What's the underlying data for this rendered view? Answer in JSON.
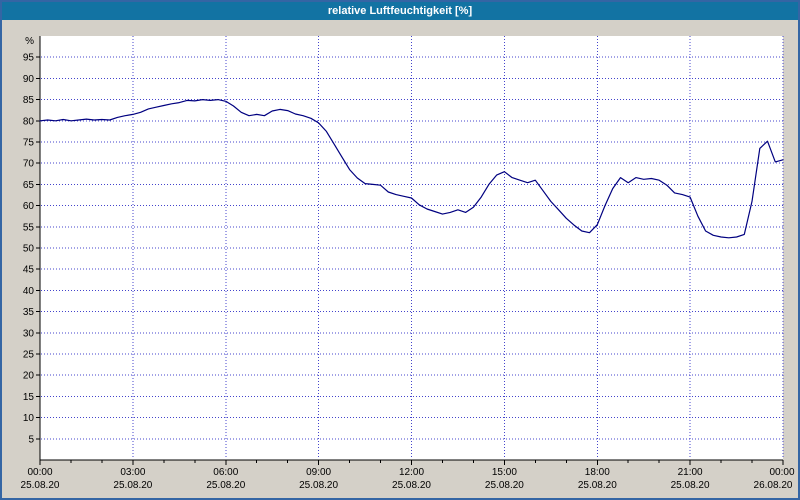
{
  "window": {
    "title": "relative Luftfeuchtigkeit [%]"
  },
  "colors": {
    "window_bg": "#d4d0c8",
    "window_border": "#3465a4",
    "titlebar_bg": "#1273a3",
    "titlebar_text": "#ffffff",
    "plot_bg": "#ffffff",
    "grid": "#4444cc",
    "axis": "#000000",
    "tick_text": "#000000",
    "series_line": "#000080"
  },
  "chart_data": {
    "type": "line",
    "title": "relative Luftfeuchtigkeit [%]",
    "xlabel": "",
    "ylabel": "%",
    "ylim": [
      0,
      100
    ],
    "xlim_minutes": [
      0,
      1440
    ],
    "grid": true,
    "legend": "none",
    "y_ticks": [
      5,
      10,
      15,
      20,
      25,
      30,
      35,
      40,
      45,
      50,
      55,
      60,
      65,
      70,
      75,
      80,
      85,
      90,
      95
    ],
    "minor_tick_step_minutes": 60,
    "x_ticks": [
      {
        "minutes": 0,
        "time": "00:00",
        "date": "25.08.20"
      },
      {
        "minutes": 180,
        "time": "03:00",
        "date": "25.08.20"
      },
      {
        "minutes": 360,
        "time": "06:00",
        "date": "25.08.20"
      },
      {
        "minutes": 540,
        "time": "09:00",
        "date": "25.08.20"
      },
      {
        "minutes": 720,
        "time": "12:00",
        "date": "25.08.20"
      },
      {
        "minutes": 900,
        "time": "15:00",
        "date": "25.08.20"
      },
      {
        "minutes": 1080,
        "time": "18:00",
        "date": "25.08.20"
      },
      {
        "minutes": 1260,
        "time": "21:00",
        "date": "25.08.20"
      },
      {
        "minutes": 1440,
        "time": "00:00",
        "date": "26.08.20"
      }
    ],
    "series": [
      {
        "name": "relative Luftfeuchtigkeit",
        "start_minute": 0,
        "step_minutes": 15,
        "values": [
          80,
          80.2,
          80,
          80.3,
          80,
          80.2,
          80.4,
          80.2,
          80.3,
          80.2,
          80.8,
          81.2,
          81.5,
          82,
          82.8,
          83.2,
          83.6,
          84,
          84.3,
          84.8,
          84.7,
          85,
          84.8,
          85,
          84.6,
          83.5,
          82,
          81.2,
          81.5,
          81.2,
          82.3,
          82.7,
          82.4,
          81.6,
          81.2,
          80.6,
          79.5,
          77.5,
          74.5,
          71.5,
          68.5,
          66.5,
          65.2,
          65,
          64.8,
          63.2,
          62.6,
          62.2,
          61.8,
          60.2,
          59.2,
          58.6,
          58,
          58.4,
          59,
          58.4,
          59.6,
          62,
          65,
          67.2,
          68,
          66.6,
          66,
          65.4,
          66,
          63.5,
          61,
          59,
          57,
          55.4,
          54,
          53.6,
          55.5,
          60,
          64,
          66.6,
          65.4,
          66.6,
          66.2,
          66.4,
          66,
          64.8,
          63,
          62.6,
          62,
          57.5,
          54,
          53,
          52.6,
          52.4,
          52.6,
          53.2,
          61,
          73.5,
          75.2,
          70.3,
          70.8
        ]
      }
    ]
  }
}
